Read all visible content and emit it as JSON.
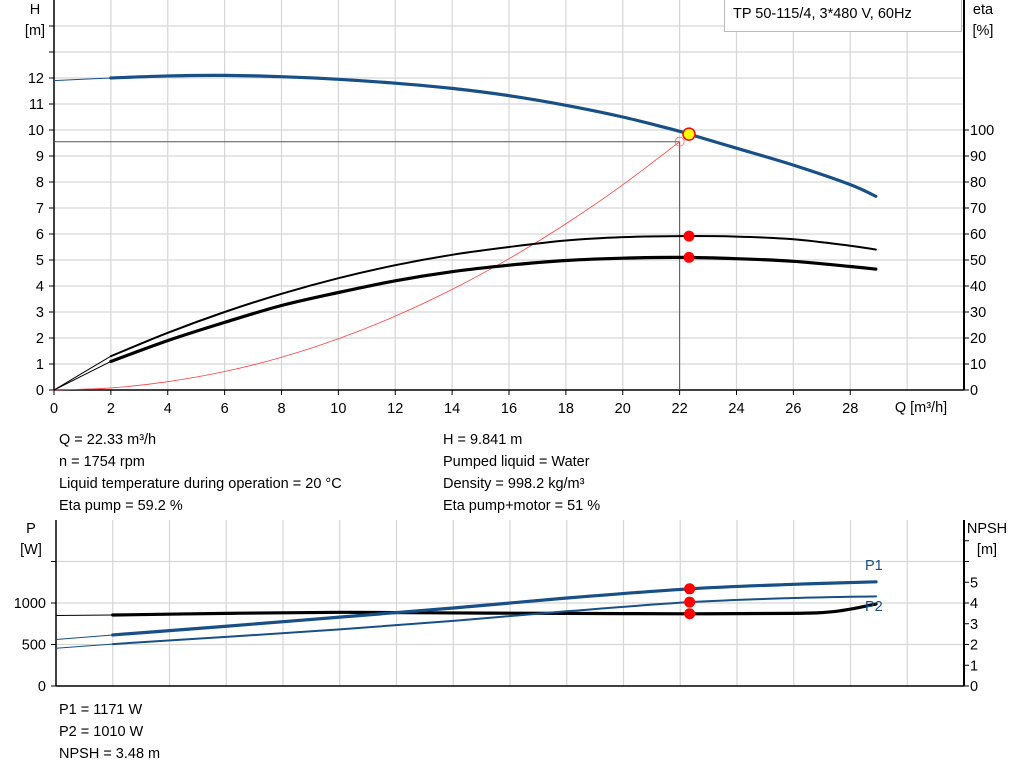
{
  "chart_data": [
    {
      "type": "line",
      "title": "TP 50-115/4, 3*480 V, 60Hz",
      "xlabel": "Q [m³/h]",
      "ylabel": "H [m]",
      "y2label": "eta [%]",
      "xlim": [
        0,
        32
      ],
      "ylim": [
        0,
        15
      ],
      "y2lim": [
        0,
        150
      ],
      "xticks": [
        0,
        2,
        4,
        6,
        8,
        10,
        12,
        14,
        16,
        18,
        20,
        22,
        24,
        26,
        28
      ],
      "yticks": [
        0,
        1,
        2,
        3,
        4,
        5,
        6,
        7,
        8,
        9,
        10,
        11,
        12
      ],
      "y2ticks": [
        0,
        10,
        20,
        30,
        40,
        50,
        60,
        70,
        80,
        90,
        100
      ],
      "grid": true,
      "series": [
        {
          "id": "H",
          "axis": "left",
          "color": "#174f86",
          "points": [
            [
              0,
              11.9
            ],
            [
              2,
              12.0
            ],
            [
              4,
              12.08
            ],
            [
              6,
              12.1
            ],
            [
              8,
              12.05
            ],
            [
              10,
              11.95
            ],
            [
              12,
              11.8
            ],
            [
              14,
              11.6
            ],
            [
              16,
              11.32
            ],
            [
              18,
              10.95
            ],
            [
              20,
              10.5
            ],
            [
              22,
              9.95
            ],
            [
              22.33,
              9.841
            ],
            [
              24,
              9.3
            ],
            [
              26,
              8.65
            ],
            [
              28,
              7.9
            ],
            [
              28.9,
              7.45
            ]
          ]
        },
        {
          "id": "eta_pump",
          "axis": "right",
          "color": "#000000",
          "points": [
            [
              0,
              0
            ],
            [
              2,
              13
            ],
            [
              4,
              22
            ],
            [
              6,
              30
            ],
            [
              8,
              37
            ],
            [
              10,
              43
            ],
            [
              12,
              48
            ],
            [
              14,
              52
            ],
            [
              16,
              55
            ],
            [
              18,
              57.5
            ],
            [
              20,
              58.8
            ],
            [
              22,
              59.2
            ],
            [
              24,
              59
            ],
            [
              26,
              58
            ],
            [
              28,
              55.5
            ],
            [
              28.9,
              54
            ]
          ]
        },
        {
          "id": "eta_pump_motor",
          "axis": "right",
          "color": "#000000",
          "points": [
            [
              0,
              0
            ],
            [
              2,
              11
            ],
            [
              4,
              19
            ],
            [
              6,
              26
            ],
            [
              8,
              32.5
            ],
            [
              10,
              37.5
            ],
            [
              12,
              42
            ],
            [
              14,
              45.5
            ],
            [
              16,
              48
            ],
            [
              18,
              49.8
            ],
            [
              20,
              50.7
            ],
            [
              22,
              51
            ],
            [
              24,
              50.5
            ],
            [
              26,
              49.5
            ],
            [
              28,
              47.5
            ],
            [
              28.9,
              46.5
            ]
          ]
        },
        {
          "id": "system_curve",
          "axis": "left",
          "color": "#ff4040",
          "points": [
            [
              0,
              0
            ],
            [
              2,
              0.08
            ],
            [
              4,
              0.32
            ],
            [
              6,
              0.71
            ],
            [
              8,
              1.26
            ],
            [
              10,
              1.97
            ],
            [
              12,
              2.84
            ],
            [
              14,
              3.87
            ],
            [
              16,
              5.05
            ],
            [
              18,
              6.39
            ],
            [
              20,
              7.89
            ],
            [
              22,
              9.55
            ]
          ]
        }
      ],
      "duty_point": {
        "Q": 22.33,
        "H": 9.841,
        "eta_pump": 59.2,
        "eta_pump_motor": 51
      },
      "system_point": {
        "Q": 22,
        "H": 9.55
      }
    },
    {
      "type": "line",
      "ylabel": "P [W]",
      "y2label": "NPSH [m]",
      "xlim": [
        0,
        32
      ],
      "ylim": [
        0,
        2000
      ],
      "y2lim": [
        0,
        8
      ],
      "yticks": [
        0,
        500,
        1000
      ],
      "y2ticks": [
        0,
        1,
        2,
        3,
        4,
        5
      ],
      "grid": true,
      "series": [
        {
          "id": "P1",
          "name": "P1",
          "axis": "left",
          "color": "#174f86",
          "points": [
            [
              0,
              560
            ],
            [
              2,
              615
            ],
            [
              6,
              720
            ],
            [
              10,
              830
            ],
            [
              14,
              940
            ],
            [
              18,
              1060
            ],
            [
              22.33,
              1171
            ],
            [
              26,
              1225
            ],
            [
              28.9,
              1255
            ]
          ]
        },
        {
          "id": "P2",
          "name": "P2",
          "axis": "left",
          "color": "#174f86",
          "points": [
            [
              0,
              455
            ],
            [
              2,
              505
            ],
            [
              6,
              592
            ],
            [
              10,
              682
            ],
            [
              14,
              785
            ],
            [
              18,
              900
            ],
            [
              22.33,
              1010
            ],
            [
              26,
              1060
            ],
            [
              28.9,
              1080
            ]
          ]
        },
        {
          "id": "NPSH",
          "axis": "right",
          "color": "#000000",
          "points": [
            [
              0,
              3.4
            ],
            [
              2,
              3.42
            ],
            [
              6,
              3.5
            ],
            [
              10,
              3.55
            ],
            [
              14,
              3.52
            ],
            [
              18,
              3.5
            ],
            [
              22.33,
              3.48
            ],
            [
              26,
              3.5
            ],
            [
              27.5,
              3.6
            ],
            [
              28.9,
              3.95
            ]
          ]
        }
      ],
      "duty_point": {
        "Q": 22.33,
        "P1": 1171,
        "P2": 1010,
        "NPSH": 3.48
      }
    }
  ],
  "top": {
    "y_label": "H",
    "y_unit": "[m]",
    "y2_label": "eta",
    "y2_unit": "[%]",
    "x_label": "Q [m³/h]",
    "legend": "TP 50-115/4, 3*480 V, 60Hz"
  },
  "bottom": {
    "y_label": "P",
    "y_unit": "[W]",
    "y2_label": "NPSH",
    "y2_unit": "[m]",
    "p1_label": "P1",
    "p2_label": "P2"
  },
  "info": {
    "q": "Q = 22.33 m³/h",
    "n": "n = 1754 rpm",
    "temp": "Liquid temperature during operation = 20 °C",
    "eta_pump": "Eta pump = 59.2 %",
    "h": "H = 9.841 m",
    "liquid": "Pumped liquid = Water",
    "density": "Density = 998.2 kg/m³",
    "eta_pm": "Eta pump+motor = 51 %",
    "p1": "P1 = 1171 W",
    "p2": "P2 = 1010 W",
    "npsh": "NPSH = 3.48 m"
  }
}
